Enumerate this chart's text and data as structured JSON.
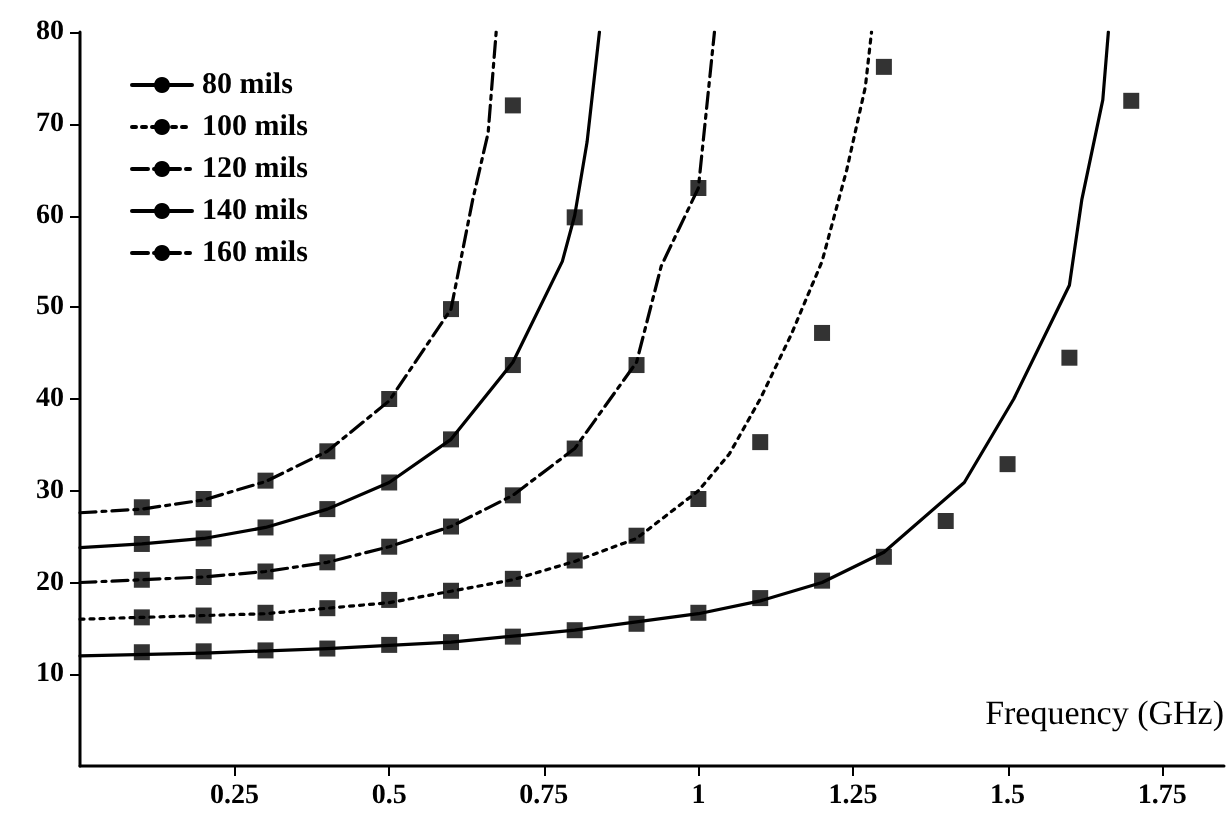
{
  "chart_data": {
    "type": "line",
    "xlabel": "Frequency (GHz)",
    "xlim": [
      0,
      1.85
    ],
    "xticks": [
      0.25,
      0.5,
      0.75,
      1,
      1.25,
      1.5,
      1.75
    ],
    "ylim": [
      0,
      80
    ],
    "yticks": [
      10,
      20,
      30,
      40,
      50,
      60,
      70,
      80
    ],
    "grid": false,
    "legend": "top left",
    "marker": "none",
    "series": [
      {
        "name": "80 mils",
        "color": "#000000",
        "line_style": "solid",
        "x": [
          0,
          0.2,
          0.4,
          0.6,
          0.8,
          1.0,
          1.1,
          1.2,
          1.3,
          1.43,
          1.51,
          1.6,
          1.62,
          1.654,
          1.663
        ],
        "values": [
          12,
          12.3,
          12.8,
          13.5,
          14.8,
          16.6,
          18,
          20,
          23.3,
          30.9,
          40,
          52.4,
          61.7,
          72.6,
          80
        ]
      },
      {
        "name": "100 mils",
        "color": "#000000",
        "line_style": "dotted",
        "x": [
          0,
          0.3,
          0.5,
          0.7,
          0.8,
          0.9,
          1.0,
          1.05,
          1.1,
          1.15,
          1.2,
          1.24,
          1.27,
          1.28
        ],
        "values": [
          16,
          16.6,
          17.8,
          20.3,
          22.3,
          24.8,
          30,
          34,
          40,
          47,
          55,
          65,
          74,
          80
        ]
      },
      {
        "name": "120 mils",
        "color": "#000000",
        "line_style": "dashed",
        "x": [
          0,
          0.1,
          0.2,
          0.3,
          0.4,
          0.5,
          0.6,
          0.7,
          0.8,
          0.9,
          0.94,
          1.0,
          1.026
        ],
        "values": [
          20,
          20.3,
          20.6,
          21.2,
          22.2,
          23.9,
          26.1,
          29.5,
          34.6,
          44,
          54.5,
          63,
          80
        ]
      },
      {
        "name": "140 mils",
        "color": "#000000",
        "line_style": "solid",
        "x": [
          0,
          0.1,
          0.2,
          0.3,
          0.4,
          0.5,
          0.6,
          0.7,
          0.78,
          0.8,
          0.82,
          0.84
        ],
        "values": [
          23.8,
          24.2,
          24.8,
          26,
          28,
          30.9,
          35.6,
          44,
          55,
          60,
          68,
          80
        ]
      },
      {
        "name": "160 mils",
        "color": "#000000",
        "line_style": "dashed",
        "x": [
          0,
          0.1,
          0.2,
          0.3,
          0.4,
          0.5,
          0.6,
          0.635,
          0.66,
          0.673
        ],
        "values": [
          27.6,
          28,
          29,
          31,
          34.3,
          39.8,
          49.8,
          61.7,
          69,
          80
        ]
      },
      {
        "type": "scatter",
        "marker": "square",
        "color": "#000000",
        "x": [
          0.1,
          0.2,
          0.3,
          0.4,
          0.5,
          0.6,
          0.7,
          0.8,
          0.9,
          1.0,
          1.1,
          1.2,
          1.3,
          1.4,
          1.5,
          1.6,
          1.7,
          0.1,
          0.2,
          0.3,
          0.4,
          0.5,
          0.6,
          0.7,
          0.8,
          0.9,
          1.0,
          1.1,
          1.2,
          1.3,
          0.1,
          0.2,
          0.3,
          0.4,
          0.5,
          0.6,
          0.7,
          0.8,
          0.9,
          1.0,
          0.1,
          0.2,
          0.3,
          0.4,
          0.5,
          0.6,
          0.7,
          0.8,
          0.1,
          0.2,
          0.3,
          0.4,
          0.5,
          0.6,
          0.7
        ],
        "values": [
          12.4,
          12.5,
          12.6,
          12.8,
          13.2,
          13.5,
          14.1,
          14.8,
          15.5,
          16.7,
          18.3,
          20.2,
          22.8,
          26.7,
          32.9,
          44.5,
          72.5,
          16.2,
          16.4,
          16.7,
          17.2,
          18.1,
          19.1,
          20.4,
          22.4,
          25.1,
          29.1,
          35.3,
          47.2,
          76.2,
          20.3,
          20.6,
          21.2,
          22.2,
          23.9,
          26.1,
          29.5,
          34.6,
          43.7,
          63,
          24.2,
          24.8,
          26,
          28,
          30.9,
          35.6,
          43.7,
          59.8,
          28.2,
          29.1,
          31.1,
          34.3,
          40,
          49.8,
          72
        ]
      }
    ]
  }
}
